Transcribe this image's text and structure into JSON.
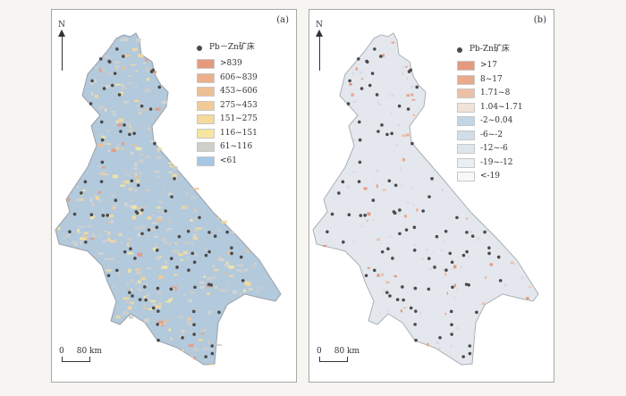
{
  "panel_a": {
    "label": "(a)",
    "north": "N",
    "legend_title": "Pb－Zn矿床",
    "legend": [
      {
        "label": ">839",
        "color": "#e59a7e"
      },
      {
        "label": "606~839",
        "color": "#eab08c"
      },
      {
        "label": "453~606",
        "color": "#eebf93"
      },
      {
        "label": "275~453",
        "color": "#f1ca98"
      },
      {
        "label": "151~275",
        "color": "#f5d99d"
      },
      {
        "label": "116~151",
        "color": "#f5e7a0"
      },
      {
        "label": "61~116",
        "color": "#cfcfcb"
      },
      {
        "label": "<61",
        "color": "#a7c6e1"
      }
    ],
    "scale_zero": "0",
    "scale_label": "80 km"
  },
  "panel_b": {
    "label": "(b)",
    "north": "N",
    "legend_title": "Pb-Zn矿床",
    "legend": [
      {
        "label": ">17",
        "color": "#e39a7e"
      },
      {
        "label": "8~17",
        "color": "#e9aa8e"
      },
      {
        "label": "1.71~8",
        "color": "#edc0a8"
      },
      {
        "label": "1.04~1.71",
        "color": "#f0e3d7"
      },
      {
        "label": "-2~0.04",
        "color": "#c3d6e6"
      },
      {
        "label": "-6~-2",
        "color": "#d1dee9"
      },
      {
        "label": "-12~-6",
        "color": "#dde6ee"
      },
      {
        "label": "-19~-12",
        "color": "#e9eff3"
      },
      {
        "label": "<-19",
        "color": "#f8f8f8"
      }
    ],
    "scale_zero": "0",
    "scale_label": "80 km"
  },
  "colors": {
    "region_a": "#a9c4dd",
    "region_b": "#e4e8ee",
    "outline": "#9aa0a8",
    "deposit": "#4a4a4a"
  }
}
